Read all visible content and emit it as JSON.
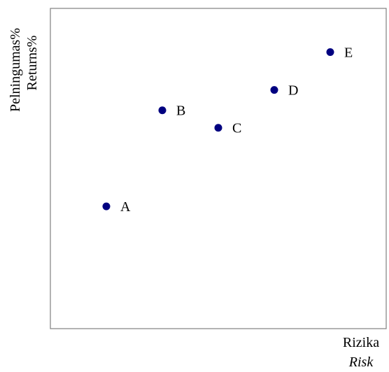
{
  "chart_data": {
    "type": "scatter",
    "ylabel_primary": "Pelningumas%",
    "ylabel_secondary": "Returns%",
    "xlabel_primary": "Rizika",
    "xlabel_secondary": "Risk",
    "xticks": [],
    "yticks": [],
    "grid": false,
    "legend": "none",
    "marker_color": "#000080",
    "frame_color": "#808080",
    "points": [
      {
        "label": "A",
        "x": 1.0,
        "y": 4.2
      },
      {
        "label": "B",
        "x": 2.0,
        "y": 7.5
      },
      {
        "label": "C",
        "x": 3.0,
        "y": 6.9
      },
      {
        "label": "D",
        "x": 4.0,
        "y": 8.2
      },
      {
        "label": "E",
        "x": 5.0,
        "y": 9.5
      }
    ],
    "xlim": [
      0,
      6
    ],
    "ylim": [
      0,
      11
    ]
  }
}
